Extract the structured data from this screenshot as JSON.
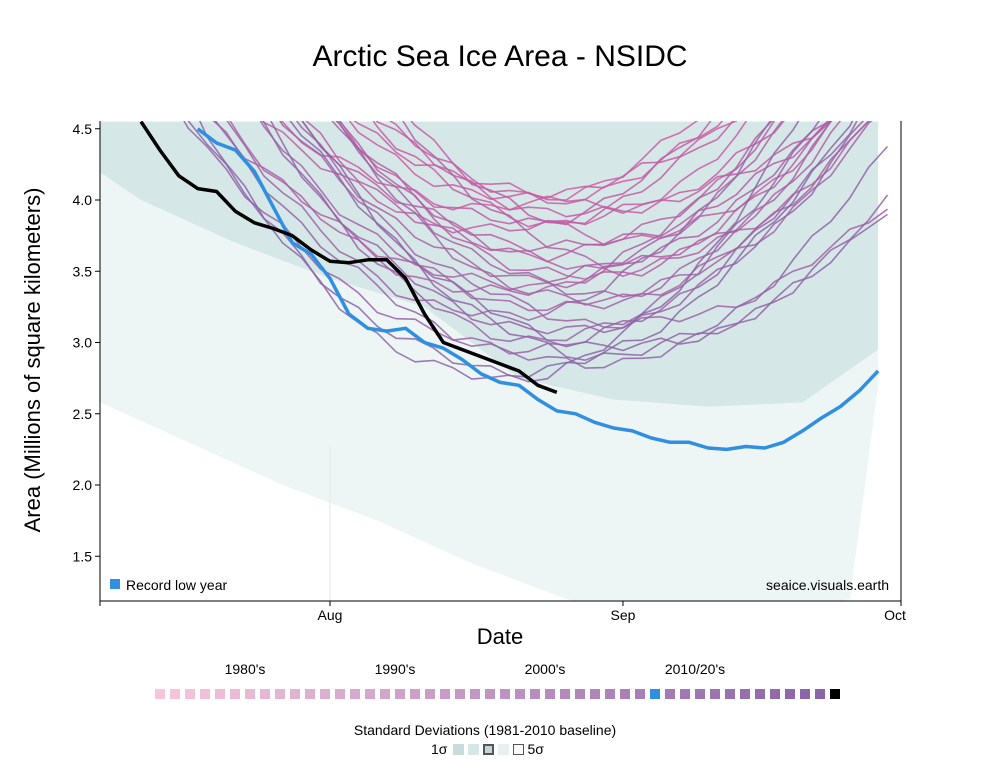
{
  "chart_data": {
    "type": "line",
    "title": "Arctic Sea Ice Area - NSIDC",
    "xlabel": "Date",
    "ylabel": "Area (Millions of square kilometers)",
    "x_ticks": [
      "Aug",
      "Sep",
      "Oct"
    ],
    "y_ticks": [
      "1.5",
      "2.0",
      "2.5",
      "3.0",
      "3.5",
      "4.0",
      "4.5"
    ],
    "ylim": [
      1.2,
      4.55
    ],
    "xlim_days": [
      -65,
      58
    ],
    "grid": false,
    "legend_note": "Record low year",
    "source_credit": "seaice.visuals.earth",
    "colors": {
      "record": "#2f8fe0",
      "current": "#000000",
      "band_1sd": "#d5e7e6",
      "band_outer": "#eef5f5",
      "early": "#f2a3c7",
      "late": "#8a64a8"
    },
    "record_low_year": {
      "x": [
        -14,
        -12,
        -10,
        -8,
        -6,
        -4,
        -2,
        0,
        2,
        4,
        6,
        8,
        10,
        12,
        14,
        16,
        18,
        20,
        22,
        24,
        26,
        28,
        30,
        32,
        34,
        36,
        38,
        40,
        42,
        44,
        46,
        48,
        50,
        52,
        54,
        56,
        58
      ],
      "y": [
        4.5,
        4.4,
        4.35,
        4.2,
        3.95,
        3.7,
        3.62,
        3.45,
        3.2,
        3.1,
        3.08,
        3.1,
        3.0,
        2.96,
        2.88,
        2.78,
        2.72,
        2.7,
        2.6,
        2.52,
        2.5,
        2.44,
        2.4,
        2.38,
        2.33,
        2.3,
        2.3,
        2.26,
        2.25,
        2.27,
        2.26,
        2.3,
        2.38,
        2.47,
        2.55,
        2.66,
        2.8
      ]
    },
    "current_year": {
      "x": [
        -20,
        -18,
        -16,
        -14,
        -12,
        -10,
        -8,
        -6,
        -4,
        -2,
        0,
        2,
        4,
        6,
        8,
        10,
        12,
        14,
        16,
        18,
        20,
        22,
        24
      ],
      "y": [
        4.55,
        4.35,
        4.17,
        4.08,
        4.06,
        3.92,
        3.84,
        3.8,
        3.75,
        3.65,
        3.57,
        3.56,
        3.58,
        3.58,
        3.45,
        3.2,
        3.0,
        2.95,
        2.9,
        2.85,
        2.8,
        2.7,
        2.65
      ]
    },
    "std_band_1sd": {
      "x": [
        -30,
        -20,
        -10,
        0,
        10,
        20,
        30,
        40,
        50,
        58
      ],
      "upper": [
        4.55,
        4.55,
        4.55,
        4.55,
        4.55,
        4.55,
        4.55,
        4.55,
        4.55,
        4.55
      ],
      "lower": [
        4.45,
        4.0,
        3.7,
        3.45,
        3.25,
        2.75,
        2.6,
        2.55,
        2.58,
        2.95
      ]
    },
    "std_band_outer": {
      "x": [
        -65,
        -55,
        -45,
        -35,
        -25,
        -15,
        -5,
        5,
        15,
        25,
        35,
        45,
        55,
        58
      ],
      "upper": [
        4.55,
        4.55,
        4.55,
        4.55,
        4.55,
        4.55,
        4.55,
        4.55,
        4.55,
        4.55,
        4.55,
        4.55,
        4.55,
        4.55
      ],
      "lower": [
        4.05,
        3.75,
        3.35,
        2.9,
        2.6,
        2.3,
        2.0,
        1.75,
        1.45,
        1.2,
        1.05,
        1.05,
        1.2,
        2.7
      ]
    }
  },
  "decades": [
    "1980's",
    "1990's",
    "2000's",
    "2010/20's"
  ],
  "year_count": 46,
  "record_year_index": 33,
  "current_year_index": 45,
  "std_legend": {
    "title": "Standard Deviations (1981-2010 baseline)",
    "left_label": "1σ",
    "right_label": "5σ"
  }
}
